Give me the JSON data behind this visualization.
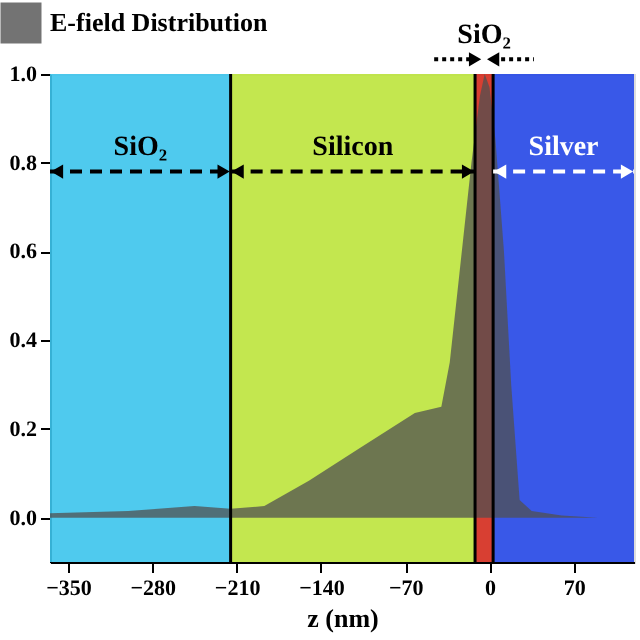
{
  "chart_data": {
    "type": "area",
    "xlabel": "z (nm)",
    "xlim": [
      -365,
      120
    ],
    "xticks": [
      -350,
      -280,
      -210,
      -140,
      -70,
      0,
      70
    ],
    "ylim": [
      -0.1,
      1.0
    ],
    "yticks": [
      {
        "value": 0,
        "label": "0.0"
      },
      0.2,
      0.4,
      0.6,
      0.8,
      {
        "value": 1,
        "label": "1.0"
      }
    ],
    "series": [
      {
        "name": "E-field Distribution",
        "color": "#505050",
        "x": [
          -365,
          -300,
          -245,
          -215,
          -187,
          -150,
          -107,
          -62,
          -40,
          -33,
          -25,
          -15,
          -8,
          -4,
          0,
          5,
          12,
          18,
          25,
          35,
          60,
          90,
          120
        ],
        "values": [
          0.01,
          0.015,
          0.026,
          0.02,
          0.026,
          0.083,
          0.158,
          0.236,
          0.25,
          0.35,
          0.55,
          0.8,
          0.95,
          1.0,
          0.97,
          0.85,
          0.6,
          0.3,
          0.04,
          0.015,
          0.005,
          0.0,
          0.0
        ]
      }
    ],
    "bands": [
      {
        "axis": "x",
        "from": -365,
        "to": -215,
        "label": "SiO₂",
        "color": "#3cc4ec"
      },
      {
        "axis": "x",
        "from": -215,
        "to": -12,
        "label": "Silicon",
        "color": "#bde43c"
      },
      {
        "axis": "x",
        "from": -12,
        "to": 3,
        "label": "SiO₂",
        "color": "#d42a1c"
      },
      {
        "axis": "x",
        "from": 3,
        "to": 120,
        "label": "Silver",
        "color": "#2446e6"
      }
    ],
    "ref_lines": [
      {
        "axis": "x",
        "value": -215,
        "color": "#000000",
        "line_style": "solid"
      },
      {
        "axis": "x",
        "value": -12,
        "color": "#000000",
        "line_style": "solid"
      },
      {
        "axis": "x",
        "value": 3,
        "color": "#000000",
        "line_style": "solid"
      }
    ],
    "legend": "top left"
  }
}
